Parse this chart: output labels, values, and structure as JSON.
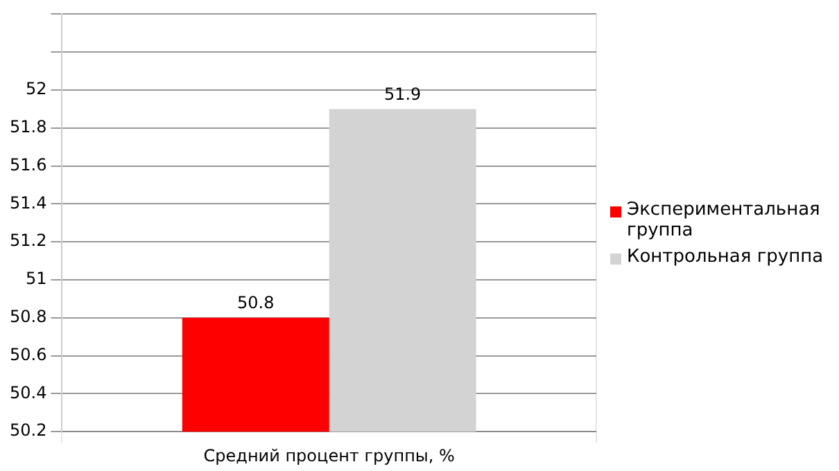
{
  "chart_data": {
    "type": "bar",
    "categories": [
      "Средний процент группы, %"
    ],
    "series": [
      {
        "name": "Экспериментальная группа",
        "color": "#ff0000",
        "values": [
          50.8
        ]
      },
      {
        "name": "Контрольная группа",
        "color": "#d3d3d3",
        "values": [
          51.9
        ]
      }
    ],
    "ylim": [
      50.2,
      52.4
    ],
    "yticks": [
      50.2,
      50.4,
      50.6,
      50.8,
      51,
      51.2,
      51.4,
      51.6,
      51.8,
      52,
      {
        "value": 52.2,
        "label": null
      },
      {
        "value": 52.4,
        "label": null
      }
    ],
    "grid": true,
    "legend": "right",
    "data_labels": true
  }
}
